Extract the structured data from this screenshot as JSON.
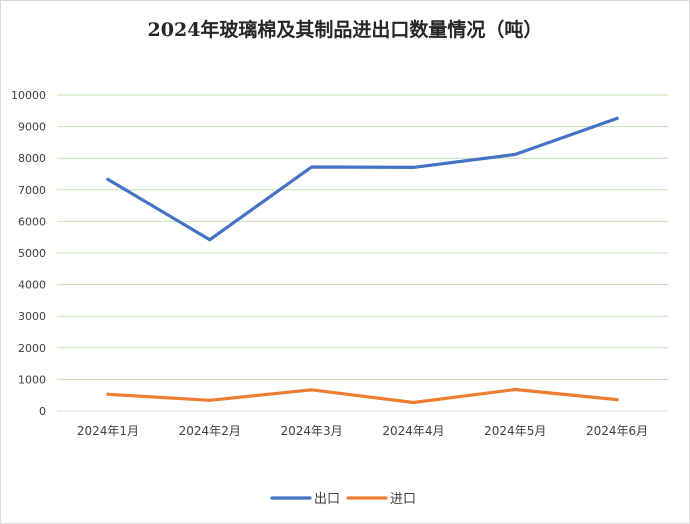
{
  "chart_data": {
    "type": "line",
    "title": "2024年玻璃棉及其制品进出口数量情况（吨）",
    "xlabel": "",
    "ylabel": "",
    "categories": [
      "2024年1月",
      "2024年2月",
      "2024年3月",
      "2024年4月",
      "2024年5月",
      "2024年6月"
    ],
    "ylim": [
      0,
      10000
    ],
    "yticks": [
      0,
      1000,
      2000,
      3000,
      4000,
      5000,
      6000,
      7000,
      8000,
      9000,
      10000
    ],
    "grid": true,
    "legend_position": "bottom",
    "series": [
      {
        "name": "出口",
        "color": "#4472c4",
        "values": [
          7330,
          5420,
          7720,
          7710,
          8120,
          9260
        ]
      },
      {
        "name": "进口",
        "color": "#ed7d31",
        "values": [
          530,
          340,
          670,
          270,
          680,
          360
        ]
      }
    ]
  }
}
